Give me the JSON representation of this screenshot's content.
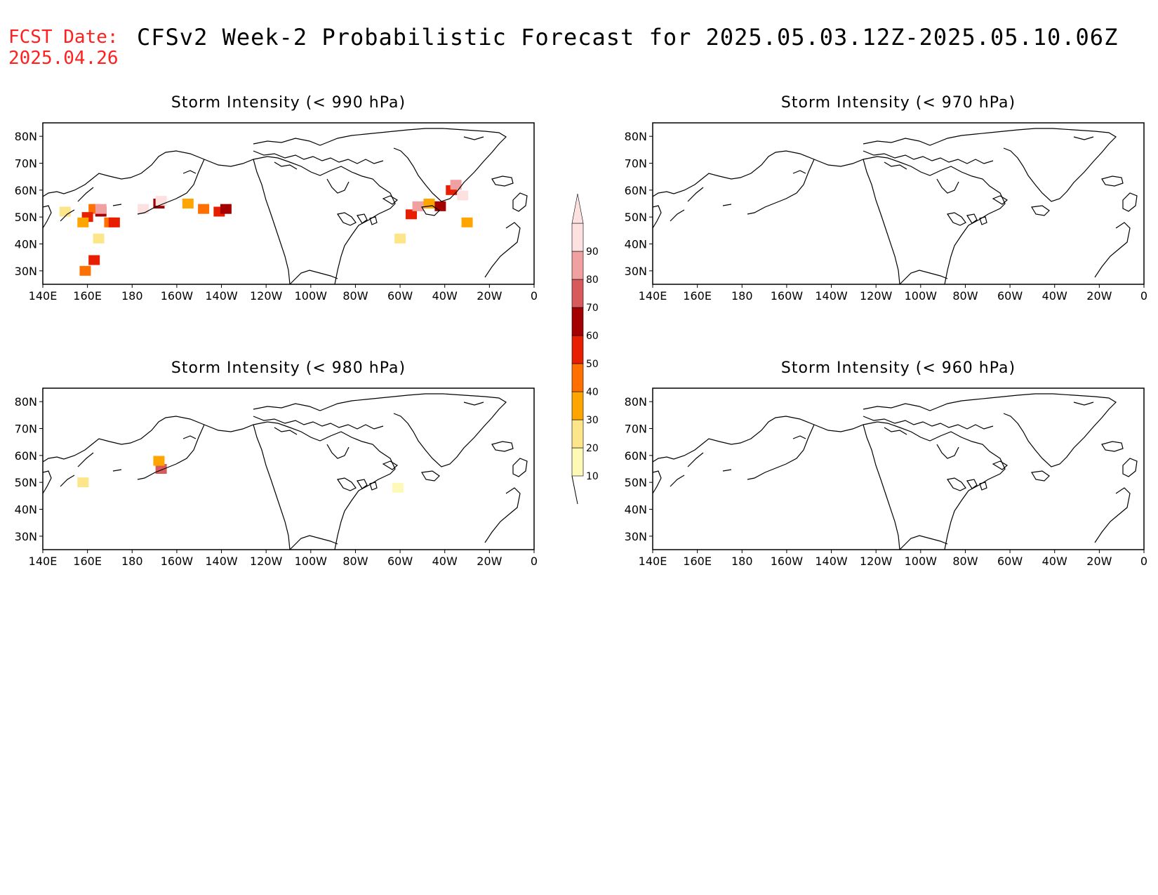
{
  "header": {
    "fcst_label": "FCST Date:",
    "fcst_date": "2025.04.26",
    "title": "CFSv2 Week-2 Probabilistic Forecast for 2025.05.03.12Z-2025.05.10.06Z"
  },
  "panels": [
    {
      "id": "p990",
      "title": "Storm Intensity (< 990 hPa)"
    },
    {
      "id": "p970",
      "title": "Storm Intensity (< 970 hPa)"
    },
    {
      "id": "p980",
      "title": "Storm Intensity (< 980 hPa)"
    },
    {
      "id": "p960",
      "title": "Storm Intensity (< 960 hPa)"
    }
  ],
  "axes": {
    "lon_labels": [
      "140E",
      "160E",
      "180",
      "160W",
      "140W",
      "120W",
      "100W",
      "80W",
      "60W",
      "40W",
      "20W",
      "0"
    ],
    "lat_labels": [
      "80N",
      "70N",
      "60N",
      "50N",
      "40N",
      "30N"
    ],
    "lon_range": [
      140,
      360
    ],
    "lat_range": [
      25,
      85
    ]
  },
  "colorbar": {
    "levels": [
      "10",
      "20",
      "30",
      "40",
      "50",
      "60",
      "70",
      "80",
      "90"
    ],
    "colors": [
      "#fff9b8",
      "#fde68a",
      "#ffa500",
      "#ff7000",
      "#e81e00",
      "#a50000",
      "#d85a5a",
      "#f0a0a0",
      "#fde0e0"
    ]
  },
  "chart_data": {
    "type": "heatmap",
    "units": "probability (%)",
    "panels": {
      "p990": [
        {
          "lon": 163,
          "lat": 53,
          "v": 40
        },
        {
          "lon": 160,
          "lat": 50,
          "v": 50
        },
        {
          "lon": 158,
          "lat": 48,
          "v": 30
        },
        {
          "lon": 166,
          "lat": 52,
          "v": 60
        },
        {
          "lon": 166,
          "lat": 53,
          "v": 80
        },
        {
          "lon": 170,
          "lat": 48,
          "v": 40
        },
        {
          "lon": 172,
          "lat": 48,
          "v": 50
        },
        {
          "lon": 150,
          "lat": 52,
          "v": 20
        },
        {
          "lon": 159,
          "lat": 30,
          "v": 40
        },
        {
          "lon": 165,
          "lat": 42,
          "v": 20
        },
        {
          "lon": 163,
          "lat": 34,
          "v": 50
        },
        {
          "lon": 185,
          "lat": 53,
          "v": 90
        },
        {
          "lon": 192,
          "lat": 55,
          "v": 60
        },
        {
          "lon": 193,
          "lat": 56,
          "v": 90
        },
        {
          "lon": 205,
          "lat": 55,
          "v": 30
        },
        {
          "lon": 212,
          "lat": 53,
          "v": 40
        },
        {
          "lon": 219,
          "lat": 52,
          "v": 50
        },
        {
          "lon": 222,
          "lat": 53,
          "v": 60
        },
        {
          "lon": 305,
          "lat": 51,
          "v": 50
        },
        {
          "lon": 308,
          "lat": 54,
          "v": 80
        },
        {
          "lon": 313,
          "lat": 55,
          "v": 30
        },
        {
          "lon": 318,
          "lat": 54,
          "v": 60
        },
        {
          "lon": 323,
          "lat": 60,
          "v": 50
        },
        {
          "lon": 325,
          "lat": 62,
          "v": 80
        },
        {
          "lon": 328,
          "lat": 58,
          "v": 90
        },
        {
          "lon": 300,
          "lat": 42,
          "v": 20
        },
        {
          "lon": 330,
          "lat": 48,
          "v": 30
        }
      ],
      "p970": [],
      "p980": [
        {
          "lon": 193,
          "lat": 55,
          "v": 70
        },
        {
          "lon": 192,
          "lat": 58,
          "v": 30
        },
        {
          "lon": 158,
          "lat": 50,
          "v": 20
        },
        {
          "lon": 299,
          "lat": 48,
          "v": 10
        }
      ],
      "p960": []
    }
  }
}
